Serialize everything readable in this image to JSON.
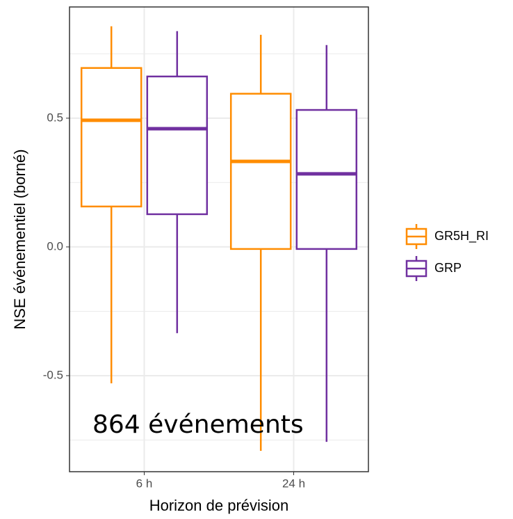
{
  "chart_data": {
    "type": "box",
    "x_label": "Horizon de prévision",
    "y_label": "NSE événementiel (borné)",
    "annotation": "864 événements",
    "categories": [
      "6 h",
      "24 h"
    ],
    "series": [
      {
        "name": "GR5H_RI",
        "color": "#ff8c00",
        "values": [
          {
            "min": -0.53,
            "q1": 0.157,
            "median": 0.492,
            "q3": 0.695,
            "max": 0.857
          },
          {
            "min": -0.792,
            "q1": -0.008,
            "median": 0.332,
            "q3": 0.595,
            "max": 0.824
          }
        ]
      },
      {
        "name": "GRP",
        "color": "#7030a0",
        "values": [
          {
            "min": -0.335,
            "q1": 0.127,
            "median": 0.459,
            "q3": 0.662,
            "max": 0.838
          },
          {
            "min": -0.757,
            "q1": -0.008,
            "median": 0.284,
            "q3": 0.532,
            "max": 0.784
          }
        ]
      }
    ],
    "ylim": [
      -0.873,
      0.932
    ],
    "yticks": [
      -0.5,
      {
        "value": 0,
        "label": "0.0"
      },
      0.5
    ],
    "y_minor_grid": [
      -0.75,
      -0.25,
      0.25,
      0.75
    ],
    "grid": true,
    "legend": "right"
  }
}
